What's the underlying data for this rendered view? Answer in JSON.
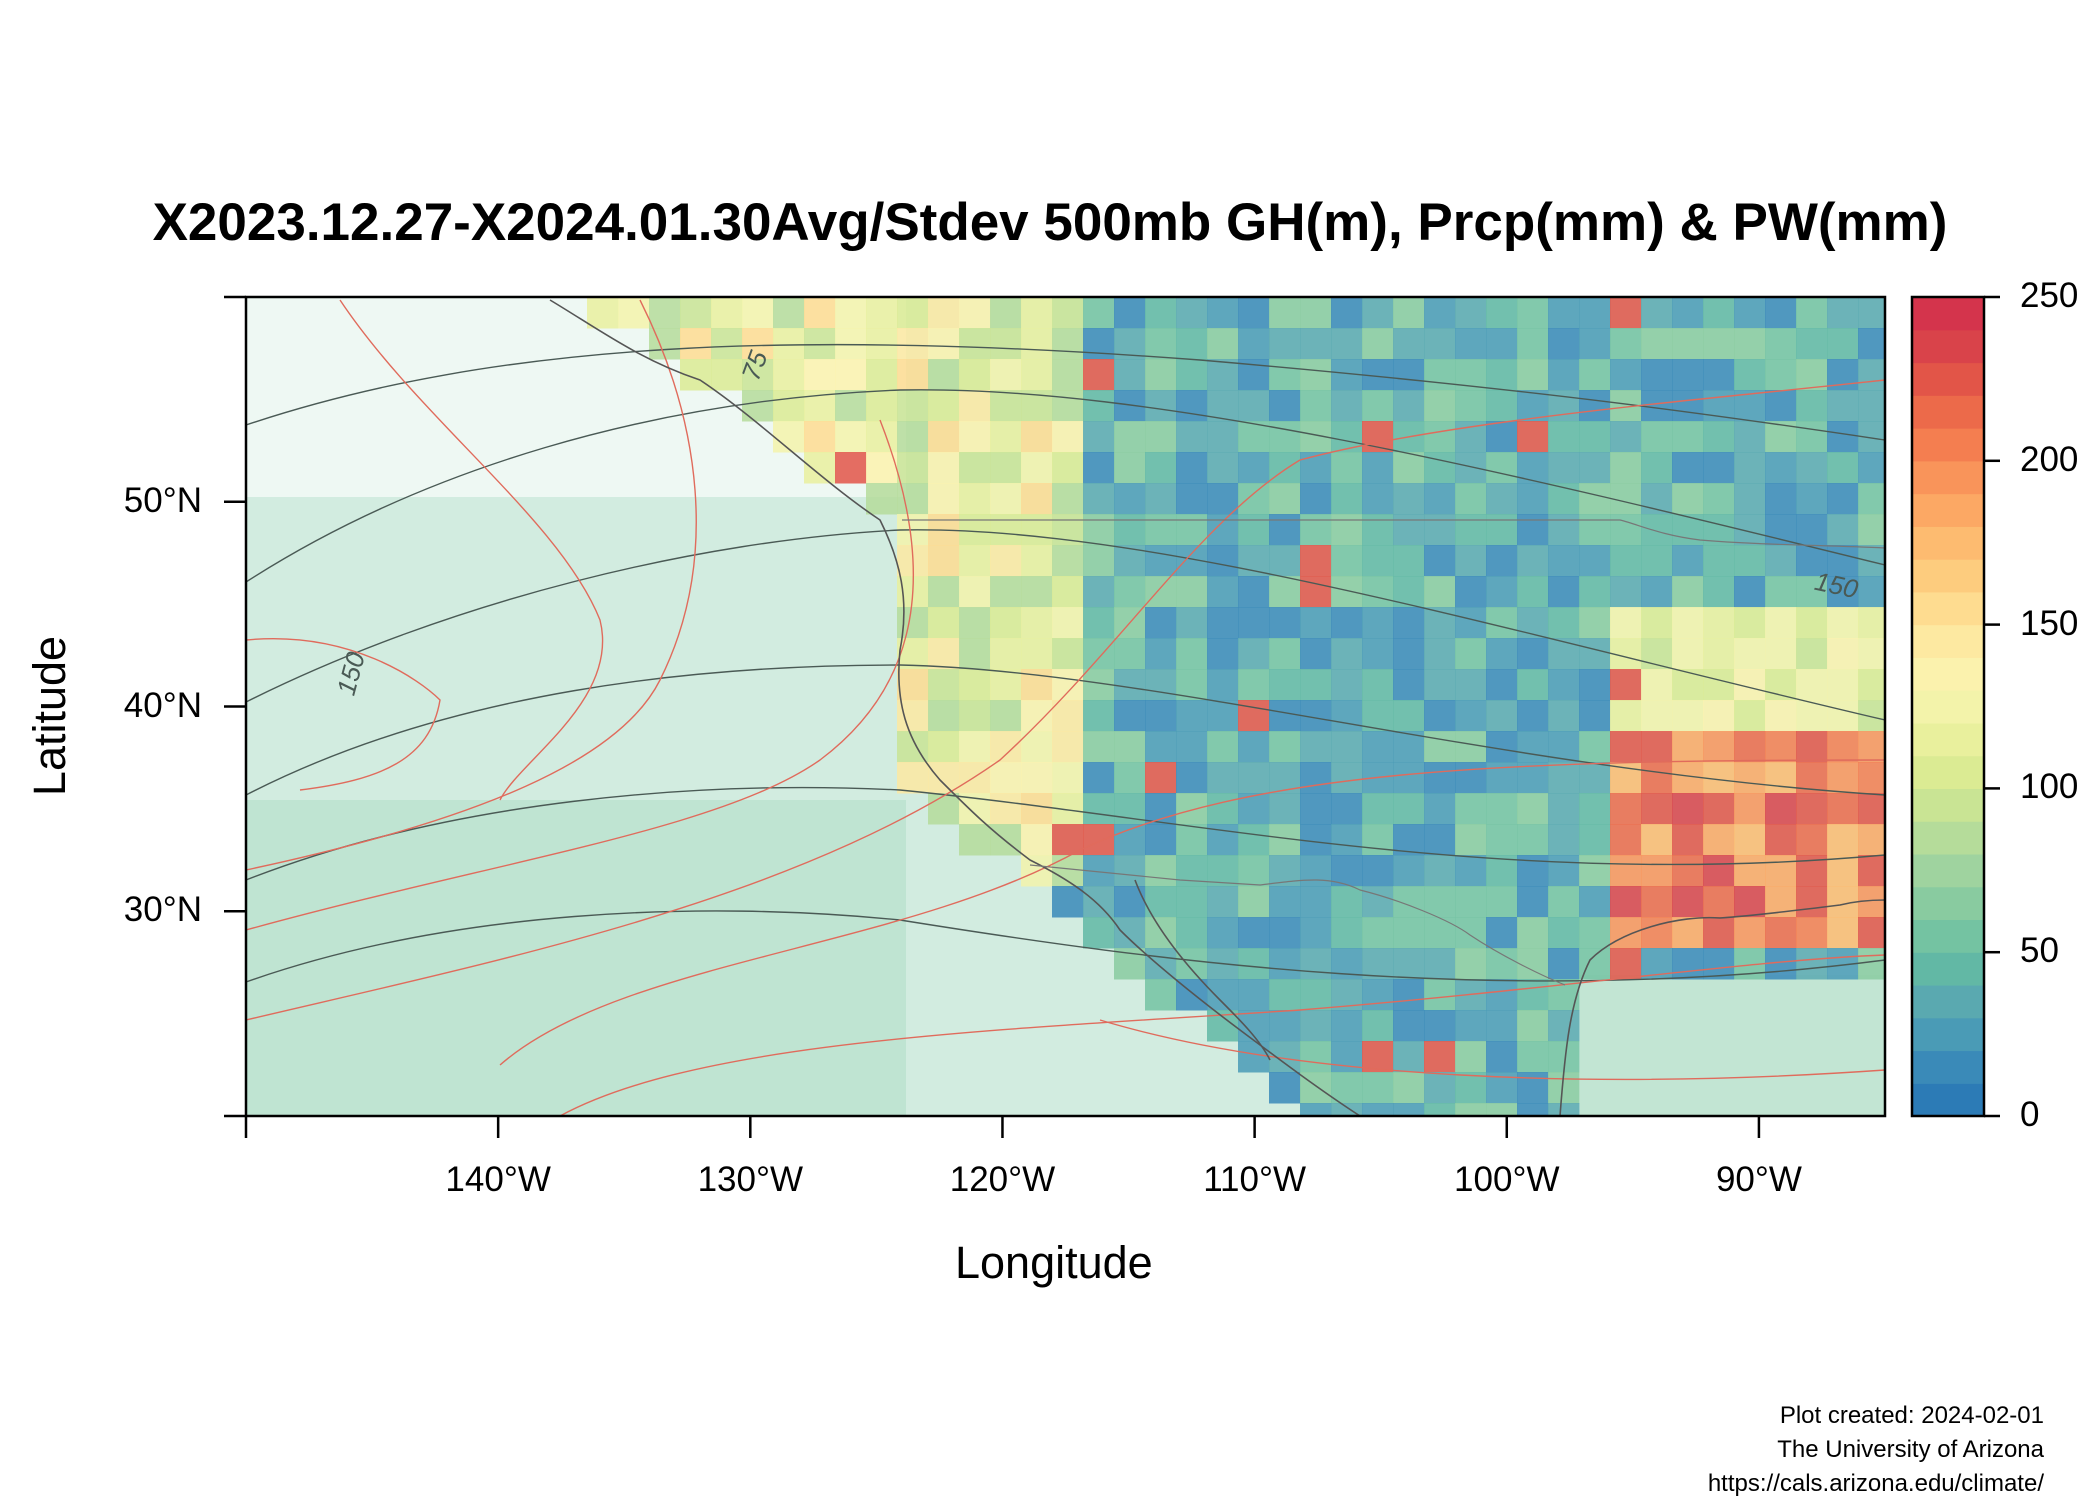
{
  "title": "X2023.12.27-X2024.01.30Avg/Stdev 500mb GH(m), Prcp(mm) & PW(mm)",
  "map": {
    "xlabel": "Longitude",
    "ylabel": "Latitude",
    "lon_range": [
      -150,
      -85
    ],
    "lat_range": [
      20,
      60
    ],
    "lon_ticks": [
      {
        "value": -140,
        "label": "140°W"
      },
      {
        "value": -130,
        "label": "130°W"
      },
      {
        "value": -120,
        "label": "120°W"
      },
      {
        "value": -110,
        "label": "110°W"
      },
      {
        "value": -100,
        "label": "100°W"
      },
      {
        "value": -90,
        "label": "90°W"
      }
    ],
    "lat_ticks": [
      {
        "value": 30,
        "label": "30°N"
      },
      {
        "value": 40,
        "label": "40°N"
      },
      {
        "value": 50,
        "label": "50°N"
      }
    ],
    "contour_labels": [
      {
        "text": "75",
        "lon": -129.5,
        "lat": 56.5,
        "rotate": -70
      },
      {
        "text": "150",
        "lon": -145.5,
        "lat": 41.5,
        "rotate": -75
      },
      {
        "text": "150",
        "lon": -87,
        "lat": 45.5,
        "rotate": 12
      }
    ]
  },
  "colorbar": {
    "min": 0,
    "max": 250,
    "ticks": [
      "0",
      "50",
      "100",
      "150",
      "200",
      "250"
    ],
    "colors": [
      "#2c7bb6",
      "#3a8ab8",
      "#4a9bb6",
      "#5aa9b0",
      "#62b8a5",
      "#74c3a2",
      "#89cba0",
      "#9fd39f",
      "#b5dc9a",
      "#c9e494",
      "#dbeb93",
      "#e9f09d",
      "#f3f3aa",
      "#fbf2ad",
      "#fde9a1",
      "#fedc90",
      "#fdcc7e",
      "#fdbb70",
      "#fca864",
      "#f9945a",
      "#f47e50",
      "#ec6a4a",
      "#e25548",
      "#d9434a",
      "#d4344c"
    ]
  },
  "credits": {
    "line1": "Plot created: 2024-02-01",
    "line2": "The University of Arizona",
    "line3": "https://cals.arizona.edu/climate/"
  }
}
